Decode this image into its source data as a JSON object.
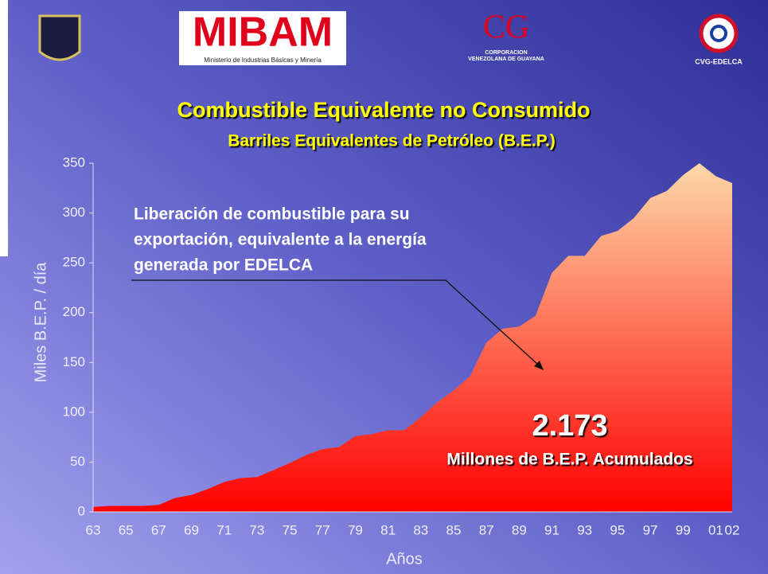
{
  "logos": {
    "ministry": "MIBAM",
    "ministry_name": "Ministerio de Industrias Básicas y Minería",
    "cvg": "CG",
    "cvg_line1": "CORPORACION",
    "cvg_line2": "VENEZOLANA DE GUAYANA",
    "edelca": "CVG-EDELCA"
  },
  "chart_data": {
    "type": "area",
    "title": "Combustible Equivalente no Consumido",
    "subtitle": "Barriles Equivalentes de Petróleo (B.E.P.)",
    "annotation_lines": [
      "Liberación de combustible para su",
      "exportación, equivalente a la energía",
      "generada por EDELCA"
    ],
    "total": "2.173",
    "total_label": "Millones de B.E.P. Acumulados",
    "y_label": "Miles B.E.P. / día",
    "x_label": "Años",
    "categories": [
      "63",
      null,
      "65",
      null,
      "67",
      null,
      "69",
      null,
      "71",
      null,
      "73",
      null,
      "75",
      null,
      "77",
      null,
      "79",
      null,
      "81",
      null,
      "83",
      null,
      "85",
      null,
      "87",
      null,
      "89",
      null,
      "91",
      null,
      "93",
      null,
      "95",
      null,
      "97",
      null,
      "99",
      null,
      "01",
      "02"
    ],
    "values": [
      5,
      6,
      6,
      6,
      7,
      14,
      17,
      23,
      30,
      34,
      35,
      42,
      49,
      57,
      63,
      65,
      76,
      78,
      82,
      82,
      95,
      110,
      122,
      136,
      170,
      184,
      186,
      197,
      240,
      257,
      257,
      277,
      282,
      295,
      315,
      322,
      338,
      350,
      337,
      330
    ],
    "color_top": "#fdd8a8",
    "color_bottom": "#ff0000",
    "ylim": [
      0,
      350
    ],
    "yticks": [
      0,
      50,
      100,
      150,
      200,
      250,
      300,
      350
    ]
  }
}
